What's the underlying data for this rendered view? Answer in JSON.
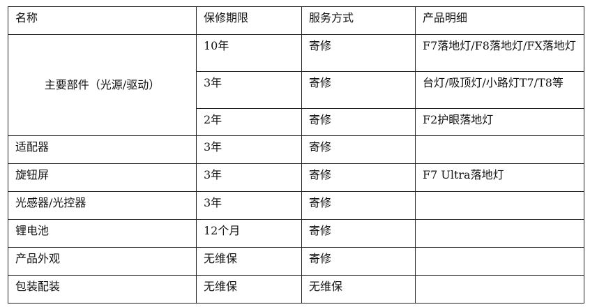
{
  "table": {
    "headers": [
      "名称",
      "保修期限",
      "服务方式",
      "产品明细"
    ],
    "main_part": {
      "name": "主要部件（光源/驱动）",
      "rows": [
        {
          "period": "10年",
          "service": "寄修",
          "detail": "F7落地灯/F8落地灯/FX落地灯"
        },
        {
          "period": "3年",
          "service": "寄修",
          "detail": "台灯/吸顶灯/小路灯T7/T8等"
        },
        {
          "period": "2年",
          "service": "寄修",
          "detail": "F2护眼落地灯"
        }
      ]
    },
    "rows": [
      {
        "name": "适配器",
        "period": "3年",
        "service": "寄修",
        "detail": ""
      },
      {
        "name": "旋钮屏",
        "period": "3年",
        "service": "寄修",
        "detail": "F7 Ultra落地灯"
      },
      {
        "name": "光感器/光控器",
        "period": "3年",
        "service": "寄修",
        "detail": ""
      },
      {
        "name": "锂电池",
        "period": "12个月",
        "service": "寄修",
        "detail": ""
      },
      {
        "name": "产品外观",
        "period": "无维保",
        "service": "寄修",
        "detail": ""
      },
      {
        "name": "包装配装",
        "period": "无维保",
        "service": "无维保",
        "detail": ""
      }
    ]
  }
}
